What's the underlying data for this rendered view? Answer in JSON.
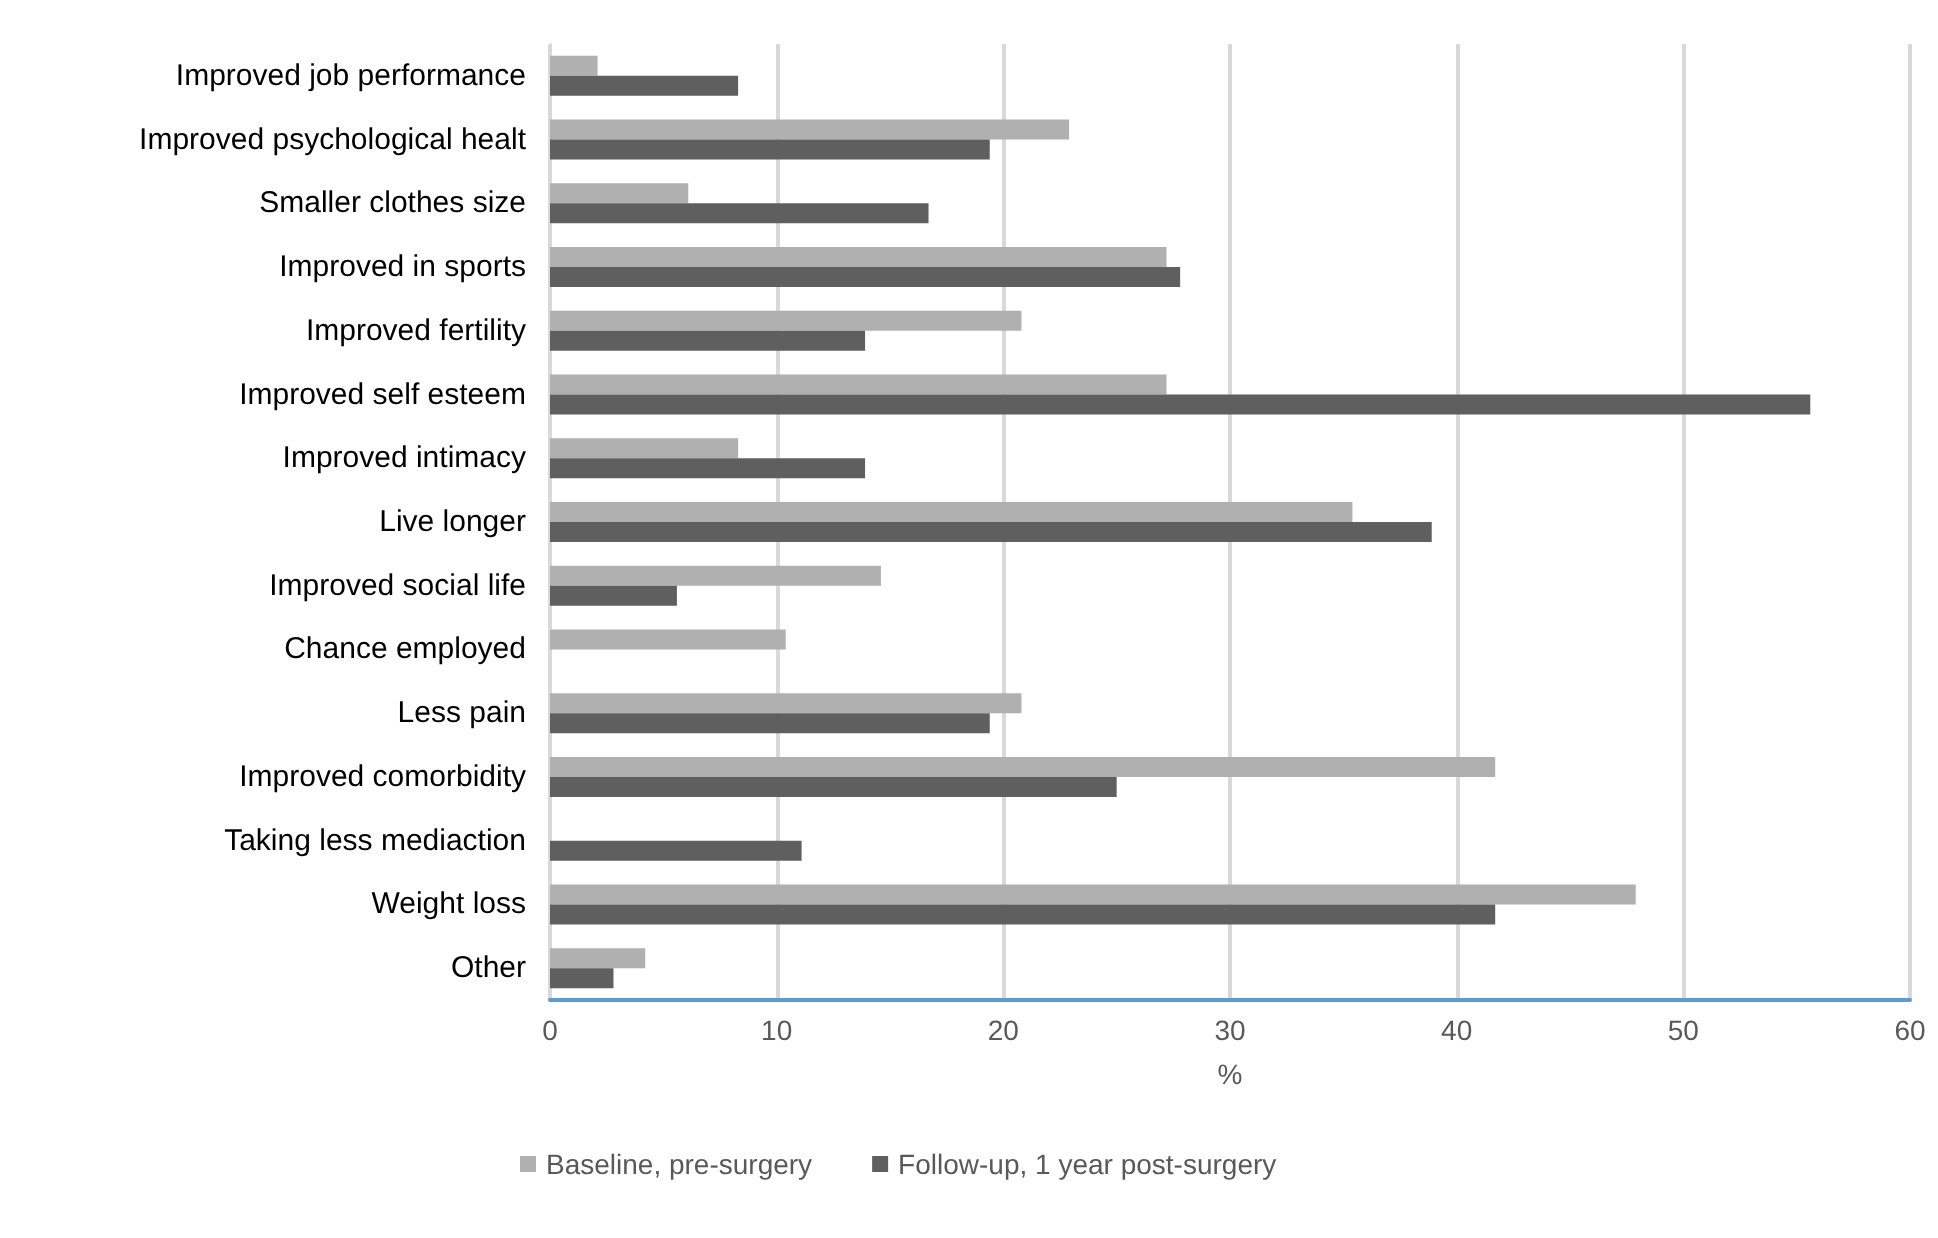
{
  "chart_data": {
    "type": "bar",
    "orientation": "horizontal",
    "xlabel": "%",
    "categories": [
      "Improved job performance",
      "Improved psychological healt",
      "Smaller clothes size",
      "Improved in sports",
      "Improved fertility",
      "Improved self esteem",
      "Improved intimacy",
      "Live longer",
      "Improved social life",
      "Chance employed",
      "Less pain",
      "Improved comorbidity",
      "Taking less mediaction",
      "Weight loss",
      "Other"
    ],
    "series": [
      {
        "name": "Baseline, pre-surgery",
        "color": "#b0b0b0",
        "values": [
          2.1,
          22.9,
          6.1,
          27.2,
          20.8,
          27.2,
          8.3,
          35.4,
          14.6,
          10.4,
          20.8,
          41.7,
          null,
          47.9,
          4.2
        ]
      },
      {
        "name": "Follow-up, 1 year post-surgery",
        "color": "#5f5f5f",
        "values": [
          8.3,
          19.4,
          16.7,
          27.8,
          13.9,
          55.6,
          13.9,
          38.9,
          5.6,
          null,
          19.4,
          25.0,
          11.1,
          41.7,
          2.8
        ]
      }
    ],
    "xlim": [
      0,
      60
    ],
    "xticks": [
      0,
      10,
      20,
      30,
      40,
      50,
      60
    ],
    "grid": "x",
    "legend": "bottom"
  }
}
